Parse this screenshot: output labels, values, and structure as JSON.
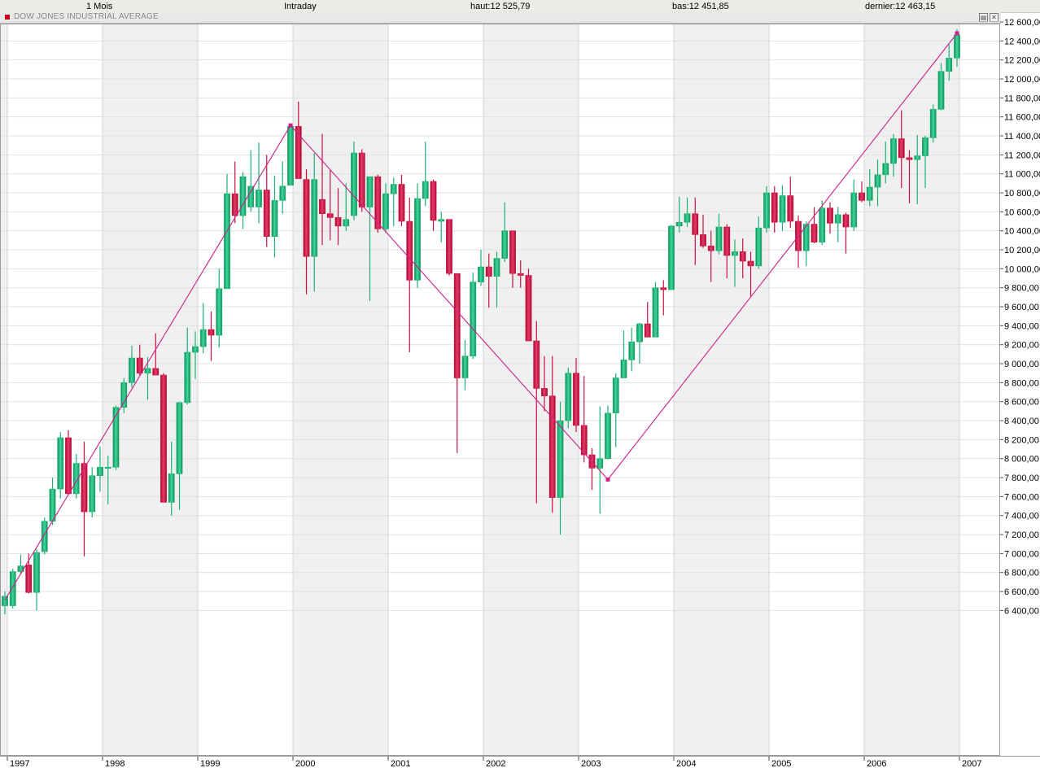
{
  "header": {
    "period": "1 Mois",
    "mode": "Intraday",
    "high": "haut:12 525,79",
    "low": "bas:12 451,85",
    "last": "dernier:12 463,15"
  },
  "chart_title": "DOW JONES INDUSTRIAL AVERAGE",
  "window_buttons": {
    "restore": "▤",
    "close": "✕"
  },
  "colors": {
    "up": "#1fb074",
    "down": "#c8103f",
    "trendline": "#cc1f8a",
    "band": "#f0f0f0",
    "grid": "#e1e1e1"
  },
  "chart_data": {
    "type": "candlestick",
    "title": "DOW JONES INDUSTRIAL AVERAGE",
    "interval": "monthly",
    "y_ticks": [
      "6 400,00",
      "6 600,00",
      "6 800,00",
      "7 000,00",
      "7 200,00",
      "7 400,00",
      "7 600,00",
      "7 800,00",
      "8 000,00",
      "8 200,00",
      "8 400,00",
      "8 600,00",
      "8 800,00",
      "9 000,00",
      "9 200,00",
      "9 400,00",
      "9 600,00",
      "9 800,00",
      "10 000,00",
      "10 200,00",
      "10 400,00",
      "10 600,00",
      "10 800,00",
      "11 000,00",
      "11 200,00",
      "11 400,00",
      "11 600,00",
      "11 800,00",
      "12 000,00",
      "12 200,00",
      "12 400,00",
      "12 600,00"
    ],
    "ylim": [
      6300,
      12650
    ],
    "x_years": [
      "1997",
      "1998",
      "1999",
      "2000",
      "2001",
      "2002",
      "2003",
      "2004",
      "2005",
      "2006",
      "2007"
    ],
    "grid": true,
    "candles": [
      [
        "1996-12",
        6450,
        6600,
        6360,
        6550
      ],
      [
        "1997-01",
        6450,
        6840,
        6420,
        6810
      ],
      [
        "1997-02",
        6810,
        6990,
        6780,
        6870
      ],
      [
        "1997-03",
        6880,
        7000,
        6580,
        6590
      ],
      [
        "1997-04",
        6590,
        7050,
        6400,
        7010
      ],
      [
        "1997-05",
        7020,
        7380,
        6990,
        7340
      ],
      [
        "1997-06",
        7340,
        7800,
        7300,
        7680
      ],
      [
        "1997-07",
        7680,
        8280,
        7580,
        8220
      ],
      [
        "1997-08",
        8220,
        8300,
        7620,
        7630
      ],
      [
        "1997-09",
        7630,
        8050,
        7580,
        7950
      ],
      [
        "1997-10",
        7950,
        8180,
        6970,
        7440
      ],
      [
        "1997-11",
        7440,
        7910,
        7380,
        7820
      ],
      [
        "1997-12",
        7820,
        8130,
        7650,
        7910
      ],
      [
        "1998-01",
        7910,
        8030,
        7520,
        7910
      ],
      [
        "1998-02",
        7910,
        8560,
        7880,
        8540
      ],
      [
        "1998-03",
        8540,
        8850,
        8480,
        8800
      ],
      [
        "1998-04",
        8800,
        9190,
        8750,
        9060
      ],
      [
        "1998-05",
        9060,
        9200,
        8880,
        8900
      ],
      [
        "1998-06",
        8900,
        9070,
        8620,
        8950
      ],
      [
        "1998-07",
        8950,
        9320,
        8880,
        8880
      ],
      [
        "1998-08",
        8880,
        8900,
        7540,
        7540
      ],
      [
        "1998-09",
        7540,
        8180,
        7400,
        7840
      ],
      [
        "1998-10",
        7840,
        8600,
        7460,
        8590
      ],
      [
        "1998-11",
        8590,
        9380,
        8570,
        9120
      ],
      [
        "1998-12",
        9120,
        9340,
        8840,
        9180
      ],
      [
        "1999-01",
        9180,
        9640,
        9110,
        9360
      ],
      [
        "1999-02",
        9360,
        9550,
        9030,
        9300
      ],
      [
        "1999-03",
        9300,
        10000,
        9170,
        9790
      ],
      [
        "1999-04",
        9790,
        11000,
        9790,
        10790
      ],
      [
        "1999-05",
        10790,
        11130,
        10480,
        10560
      ],
      [
        "1999-06",
        10560,
        11020,
        10420,
        10970
      ],
      [
        "1999-07",
        10650,
        11250,
        10600,
        10870
      ],
      [
        "1999-08",
        10650,
        11330,
        10480,
        10830
      ],
      [
        "1999-09",
        10830,
        11200,
        10230,
        10340
      ],
      [
        "1999-10",
        10340,
        10980,
        10120,
        10720
      ],
      [
        "1999-11",
        10720,
        11130,
        10580,
        10870
      ],
      [
        "1999-12",
        10880,
        11500,
        10880,
        11500
      ],
      [
        "2000-01",
        11500,
        11760,
        10990,
        10950
      ],
      [
        "2000-02",
        10940,
        11050,
        9730,
        10130
      ],
      [
        "2000-03",
        10130,
        11220,
        9760,
        10940
      ],
      [
        "2000-04",
        10730,
        11420,
        10250,
        10580
      ],
      [
        "2000-05",
        10580,
        11040,
        10300,
        10540
      ],
      [
        "2000-06",
        10540,
        10850,
        10250,
        10450
      ],
      [
        "2000-07",
        10450,
        10900,
        10400,
        10520
      ],
      [
        "2000-08",
        10560,
        11340,
        10510,
        11220
      ],
      [
        "2000-09",
        11220,
        11260,
        10600,
        10650
      ],
      [
        "2000-10",
        10650,
        10960,
        9660,
        10970
      ],
      [
        "2000-11",
        10970,
        10990,
        10380,
        10420
      ],
      [
        "2000-12",
        10420,
        10900,
        10380,
        10790
      ],
      [
        "2001-01",
        10790,
        10960,
        10450,
        10890
      ],
      [
        "2001-02",
        10890,
        10990,
        10450,
        10500
      ],
      [
        "2001-03",
        10500,
        10750,
        9120,
        9880
      ],
      [
        "2001-04",
        9880,
        10900,
        9800,
        10740
      ],
      [
        "2001-05",
        10740,
        11340,
        10660,
        10920
      ],
      [
        "2001-06",
        10920,
        10940,
        10400,
        10510
      ],
      [
        "2001-07",
        10500,
        10600,
        10280,
        10520
      ],
      [
        "2001-08",
        10520,
        10520,
        9930,
        9950
      ],
      [
        "2001-09",
        9950,
        9950,
        8060,
        8850
      ],
      [
        "2001-10",
        8850,
        9250,
        8720,
        9080
      ],
      [
        "2001-11",
        9080,
        9960,
        9050,
        9860
      ],
      [
        "2001-12",
        9860,
        10200,
        9820,
        10020
      ],
      [
        "2002-01",
        10020,
        10160,
        9590,
        9920
      ],
      [
        "2002-02",
        9920,
        10180,
        9590,
        10110
      ],
      [
        "2002-03",
        10110,
        10700,
        10070,
        10400
      ],
      [
        "2002-04",
        10400,
        10400,
        9800,
        9950
      ],
      [
        "2002-05",
        9950,
        10090,
        9800,
        9930
      ],
      [
        "2002-06",
        9930,
        10000,
        9250,
        9240
      ],
      [
        "2002-07",
        9240,
        9450,
        7530,
        8740
      ],
      [
        "2002-08",
        8740,
        9080,
        8500,
        8660
      ],
      [
        "2002-09",
        8660,
        9080,
        7430,
        7590
      ],
      [
        "2002-10",
        7590,
        8600,
        7200,
        8400
      ],
      [
        "2002-11",
        8400,
        8960,
        8320,
        8900
      ],
      [
        "2002-12",
        8900,
        9060,
        8280,
        8350
      ],
      [
        "2003-01",
        8350,
        8870,
        7960,
        8040
      ],
      [
        "2003-02",
        8040,
        8110,
        7670,
        7900
      ],
      [
        "2003-03",
        7900,
        8550,
        7420,
        8000
      ],
      [
        "2003-04",
        8000,
        8560,
        7990,
        8480
      ],
      [
        "2003-05",
        8480,
        8900,
        8120,
        8850
      ],
      [
        "2003-06",
        8850,
        9350,
        8860,
        9040
      ],
      [
        "2003-07",
        9040,
        9380,
        8920,
        9230
      ],
      [
        "2003-08",
        9230,
        9430,
        9000,
        9420
      ],
      [
        "2003-09",
        9420,
        9650,
        9290,
        9280
      ],
      [
        "2003-10",
        9280,
        9860,
        9280,
        9800
      ],
      [
        "2003-11",
        9800,
        9880,
        9510,
        9780
      ],
      [
        "2003-12",
        9780,
        10460,
        9780,
        10450
      ],
      [
        "2004-01",
        10450,
        10760,
        10380,
        10490
      ],
      [
        "2004-02",
        10490,
        10750,
        10440,
        10580
      ],
      [
        "2004-03",
        10580,
        10750,
        10040,
        10360
      ],
      [
        "2004-04",
        10360,
        10570,
        10220,
        10240
      ],
      [
        "2004-05",
        10240,
        10400,
        9860,
        10190
      ],
      [
        "2004-06",
        10190,
        10580,
        10150,
        10440
      ],
      [
        "2004-07",
        10440,
        10470,
        9900,
        10140
      ],
      [
        "2004-08",
        10140,
        10310,
        9810,
        10180
      ],
      [
        "2004-09",
        10180,
        10320,
        9900,
        10080
      ],
      [
        "2004-10",
        10080,
        10180,
        9710,
        10030
      ],
      [
        "2004-11",
        10030,
        10550,
        10000,
        10430
      ],
      [
        "2004-12",
        10430,
        10870,
        10380,
        10800
      ],
      [
        "2005-01",
        10800,
        10870,
        10380,
        10490
      ],
      [
        "2005-02",
        10490,
        10880,
        10400,
        10770
      ],
      [
        "2005-03",
        10770,
        10970,
        10430,
        10500
      ],
      [
        "2005-04",
        10500,
        10560,
        10010,
        10190
      ],
      [
        "2005-05",
        10190,
        10500,
        10030,
        10470
      ],
      [
        "2005-06",
        10470,
        10650,
        10270,
        10280
      ],
      [
        "2005-07",
        10280,
        10720,
        10250,
        10640
      ],
      [
        "2005-08",
        10640,
        10700,
        10370,
        10480
      ],
      [
        "2005-09",
        10480,
        10650,
        10280,
        10570
      ],
      [
        "2005-10",
        10570,
        10590,
        10160,
        10440
      ],
      [
        "2005-11",
        10440,
        10940,
        10400,
        10800
      ],
      [
        "2005-12",
        10800,
        10920,
        10700,
        10720
      ],
      [
        "2006-01",
        10720,
        11050,
        10660,
        10860
      ],
      [
        "2006-02",
        10860,
        11150,
        10660,
        10990
      ],
      [
        "2006-03",
        10990,
        11340,
        10900,
        11110
      ],
      [
        "2006-04",
        11110,
        11420,
        10970,
        11370
      ],
      [
        "2006-05",
        11370,
        11670,
        10850,
        11170
      ],
      [
        "2006-06",
        11170,
        11250,
        10690,
        11150
      ],
      [
        "2006-07",
        11150,
        11410,
        10680,
        11190
      ],
      [
        "2006-08",
        11190,
        11400,
        10850,
        11380
      ],
      [
        "2006-09",
        11380,
        11730,
        11330,
        11680
      ],
      [
        "2006-10",
        11680,
        12170,
        11670,
        12080
      ],
      [
        "2006-11",
        12080,
        12370,
        11980,
        12220
      ],
      [
        "2006-12",
        12220,
        12525,
        12130,
        12463
      ]
    ],
    "trendline": [
      [
        0,
        6510
      ],
      [
        36,
        11510
      ],
      [
        76,
        7780
      ],
      [
        120,
        12480
      ]
    ]
  }
}
